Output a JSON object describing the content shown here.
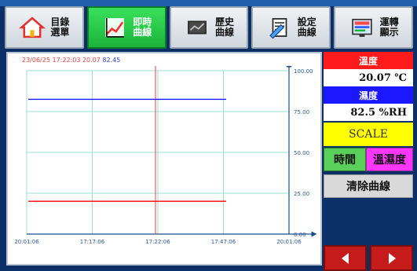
{
  "nav": [
    {
      "label": "目錄\n選單",
      "icon": "home-icon"
    },
    {
      "label": "即時\n曲線",
      "icon": "realtime-chart-icon"
    },
    {
      "label": "歷史\n曲線",
      "icon": "history-chart-icon"
    },
    {
      "label": "設定\n曲線",
      "icon": "settings-doc-icon"
    },
    {
      "label": "運轉\n顯示",
      "icon": "screen-icon"
    }
  ],
  "readout": {
    "time_text": "23/06/25 17:22:03  20.07",
    "value_text": "82.45"
  },
  "panel": {
    "temp_label": "溫度",
    "temp_value": "20.07 ℃",
    "hum_label": "濕度",
    "hum_value": "82.5 %RH",
    "scale_label": "SCALE",
    "time_button": "時間",
    "temphum_button": "溫濕度",
    "clear_button": "清除曲線"
  },
  "colors": {
    "temp": "#ff1b1b",
    "humidity": "#1b18ff",
    "grid": "#9bdcd6",
    "cursor": "#ff5a5a"
  },
  "chart_data": {
    "type": "line",
    "x_ticks": [
      "20:01:06",
      "17:17:06",
      "17:22:06",
      "17:47:06",
      "20:01:06"
    ],
    "y_ticks": [
      0,
      25,
      50,
      75,
      100
    ],
    "y_tick_labels": [
      "0.00",
      "25.00",
      "50.00",
      "75.00",
      "100.00"
    ],
    "ylim": [
      0,
      100
    ],
    "series": [
      {
        "values": [
          82.5,
          82.5,
          82.5,
          82.5,
          82.5,
          82.5,
          82.5,
          82.5
        ]
      },
      {
        "values": [
          20.07,
          20.07,
          20.07,
          20.07,
          20.07,
          20.07,
          20.07,
          20.07
        ]
      }
    ]
  }
}
